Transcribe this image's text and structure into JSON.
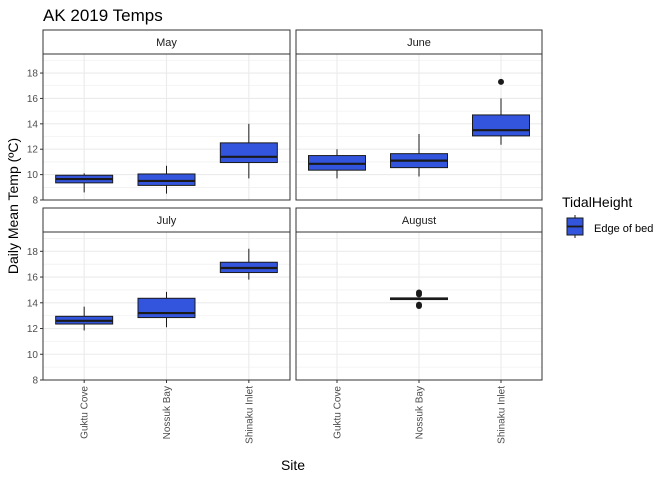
{
  "chart_data": {
    "type": "boxplot",
    "title": "AK 2019 Temps",
    "xlabel": "Site",
    "ylabel": "Daily Mean Temp (ºC)",
    "ylim": [
      8,
      19.5
    ],
    "yticks": [
      "8",
      "10",
      "12",
      "14",
      "16",
      "18"
    ],
    "categories": [
      "Guktu Cove",
      "Nossuk Bay",
      "Shinaku Inlet"
    ],
    "facets": [
      {
        "label": "May",
        "boxes": [
          {
            "site": "Guktu Cove",
            "min": 8.6,
            "q1": 9.35,
            "median": 9.65,
            "q3": 9.95,
            "max": 10.1,
            "outliers": []
          },
          {
            "site": "Nossuk Bay",
            "min": 8.5,
            "q1": 9.15,
            "median": 9.5,
            "q3": 10.05,
            "max": 10.7,
            "outliers": []
          },
          {
            "site": "Shinaku Inlet",
            "min": 9.7,
            "q1": 10.95,
            "median": 11.4,
            "q3": 12.5,
            "max": 14.0,
            "outliers": []
          }
        ]
      },
      {
        "label": "June",
        "boxes": [
          {
            "site": "Guktu Cove",
            "min": 9.7,
            "q1": 10.35,
            "median": 10.85,
            "q3": 11.5,
            "max": 12.0,
            "outliers": []
          },
          {
            "site": "Nossuk Bay",
            "min": 9.85,
            "q1": 10.55,
            "median": 11.1,
            "q3": 11.65,
            "max": 13.2,
            "outliers": []
          },
          {
            "site": "Shinaku Inlet",
            "min": 12.35,
            "q1": 13.05,
            "median": 13.5,
            "q3": 14.7,
            "max": 16.0,
            "outliers": [
              17.3
            ]
          }
        ]
      },
      {
        "label": "July",
        "boxes": [
          {
            "site": "Guktu Cove",
            "min": 11.85,
            "q1": 12.35,
            "median": 12.6,
            "q3": 12.95,
            "max": 13.7,
            "outliers": []
          },
          {
            "site": "Nossuk Bay",
            "min": 12.1,
            "q1": 12.85,
            "median": 13.2,
            "q3": 14.35,
            "max": 14.85,
            "outliers": []
          },
          {
            "site": "Shinaku Inlet",
            "min": 15.8,
            "q1": 16.35,
            "median": 16.7,
            "q3": 17.15,
            "max": 18.2,
            "outliers": []
          }
        ]
      },
      {
        "label": "August",
        "boxes": [
          {
            "site": "Nossuk Bay",
            "min": 14.22,
            "q1": 14.25,
            "median": 14.32,
            "q3": 14.38,
            "max": 14.4,
            "outliers": [
              14.8,
              14.65,
              13.85,
              13.75
            ]
          }
        ]
      }
    ],
    "legend": {
      "title": "TidalHeight",
      "entries": [
        {
          "label": "Edge of bed",
          "color": "#3355dd"
        }
      ],
      "position": "right"
    },
    "colors": {
      "box_fill": "#3355dd",
      "line": "#1a1a1a",
      "grid": "#ebebeb",
      "strip_fill": "#ffffff"
    }
  }
}
